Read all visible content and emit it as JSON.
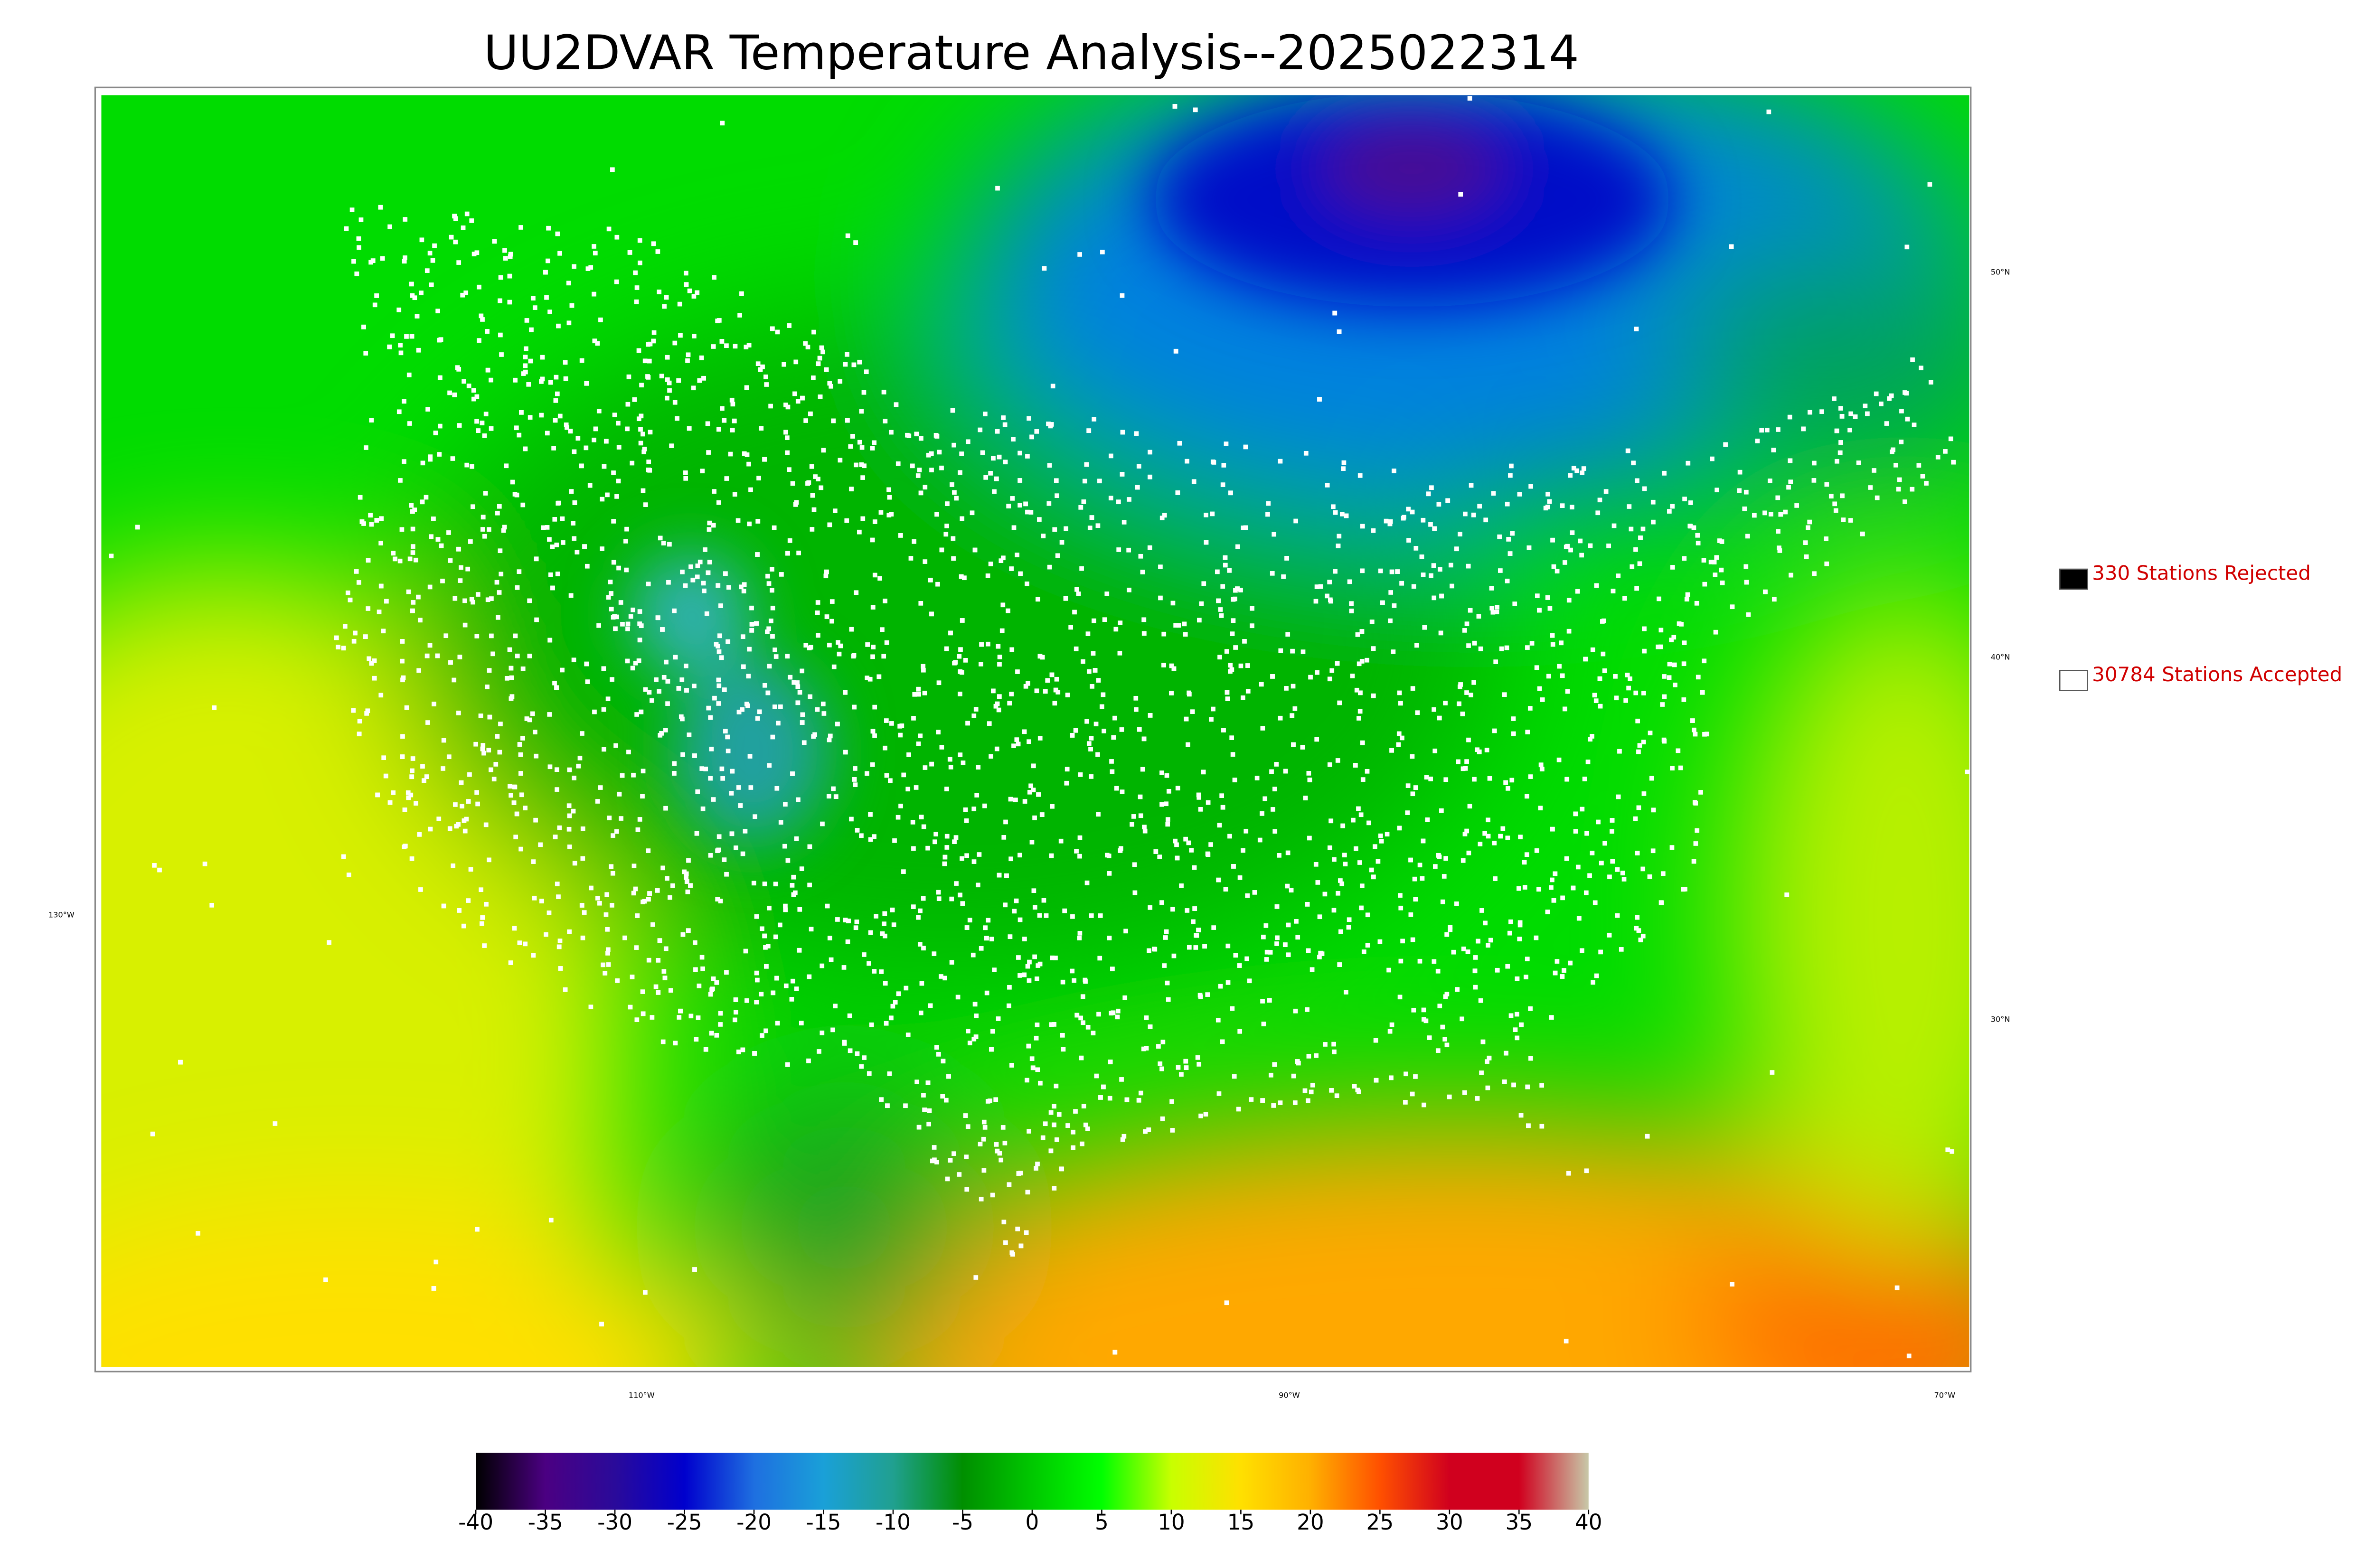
{
  "title": "UU2DVAR Temperature Analysis--2025022314",
  "colorbar": {
    "range": [
      -40,
      40
    ],
    "ticks": [
      -40,
      -35,
      -30,
      -25,
      -20,
      -15,
      -10,
      -5,
      0,
      5,
      10,
      15,
      20,
      25,
      30,
      35,
      40
    ],
    "colors": [
      "#000000",
      "#4b0082",
      "#2a0a9a",
      "#0000cd",
      "#1e6fe0",
      "#1aa0d8",
      "#20a090",
      "#008f00",
      "#00c800",
      "#00ff00",
      "#c8ff00",
      "#ffe000",
      "#ffb000",
      "#ff5000",
      "#d0001e",
      "#d0001e",
      "#c8c8a8"
    ]
  },
  "legend": [
    {
      "label": "330 Stations Rejected",
      "color": "#000000"
    },
    {
      "label": "30784 Stations Accepted",
      "color": "#ffffff"
    }
  ],
  "graticule": {
    "lat": [
      "50°N",
      "40°N",
      "30°N"
    ],
    "lon": [
      "130°W",
      "110°W",
      "90°W",
      "70°W"
    ]
  }
}
